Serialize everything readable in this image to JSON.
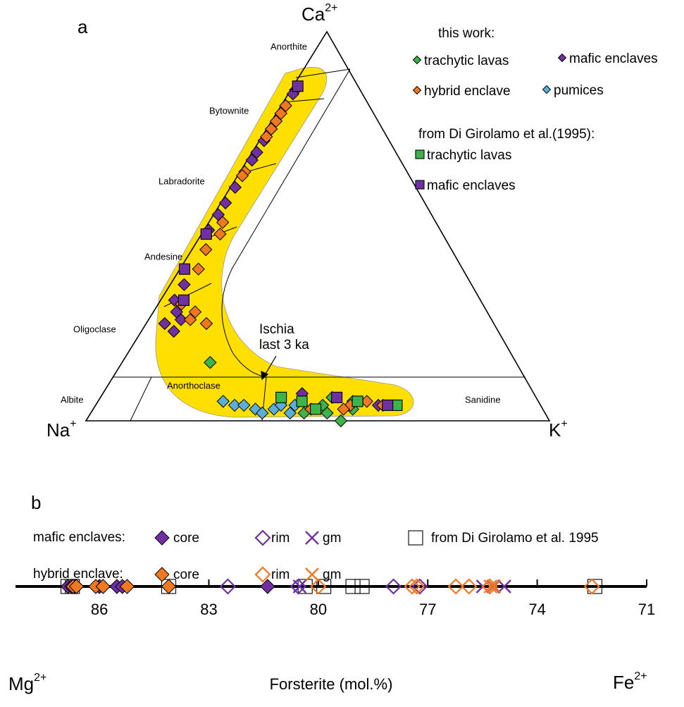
{
  "chart_data": [
    {
      "type": "ternary",
      "panel_label": "a",
      "vertex_labels": {
        "top": {
          "text": "Ca",
          "sup": "2+"
        },
        "left": {
          "text": "Na",
          "sup": "+"
        },
        "right": {
          "text": "K",
          "sup": "+"
        }
      },
      "field_labels": [
        "Anorthite",
        "Bytownite",
        "Labradorite",
        "Andesine",
        "Oligoclase",
        "Albite",
        "Anorthoclase",
        "Sanidine"
      ],
      "annotation": [
        "Ischia",
        "last 3 ka"
      ],
      "field_color": "#ffdf00",
      "legend_groups": [
        "this work:",
        "from Di Girolamo et al.(1995):"
      ],
      "series": [
        {
          "name": "trachytic lavas",
          "group": 0,
          "marker": "diamond",
          "color": "#3cb44b",
          "values": [
            [
              15,
              66,
              19
            ],
            [
              6,
              44,
              50
            ],
            [
              5,
              40,
              55
            ],
            [
              2,
              47,
              51
            ],
            [
              2,
              52,
              46
            ],
            [
              0,
              45,
              55
            ],
            [
              4,
              47,
              49
            ],
            [
              3,
              41,
              56
            ]
          ]
        },
        {
          "name": "mafic enclaves",
          "group": 0,
          "marker": "diamond",
          "color": "#7030a0",
          "values": [
            [
              85,
              14,
              1
            ],
            [
              84,
              15,
              1
            ],
            [
              81,
              18,
              1
            ],
            [
              79,
              20,
              1
            ],
            [
              75,
              24,
              1
            ],
            [
              72,
              27,
              1
            ],
            [
              69,
              30,
              1
            ],
            [
              67,
              32,
              1
            ],
            [
              60,
              39,
              1
            ],
            [
              56,
              43,
              1
            ],
            [
              53,
              46,
              1
            ],
            [
              49,
              50,
              1
            ],
            [
              35,
              62,
              3
            ],
            [
              31,
              66,
              3
            ],
            [
              28,
              67,
              5
            ],
            [
              25,
              71,
              4
            ],
            [
              23,
              70,
              7
            ],
            [
              26,
              67,
              7
            ],
            [
              7,
              50,
              43
            ],
            [
              4,
              35,
              61
            ]
          ]
        },
        {
          "name": "hybrid enclave",
          "group": 0,
          "marker": "diamond",
          "color": "#f07820",
          "values": [
            [
              81,
              18,
              1
            ],
            [
              79,
              20,
              1
            ],
            [
              77,
              22,
              1
            ],
            [
              75,
              24,
              1
            ],
            [
              73,
              26,
              1
            ],
            [
              64,
              35,
              1
            ],
            [
              63,
              36,
              1
            ],
            [
              51,
              46,
              3
            ],
            [
              48,
              48,
              4
            ],
            [
              44,
              53,
              3
            ],
            [
              39,
              57,
              4
            ],
            [
              30,
              65,
              5
            ],
            [
              28,
              63,
              9
            ],
            [
              26,
              65,
              9
            ],
            [
              25,
              62,
              13
            ],
            [
              5,
              37,
              58
            ],
            [
              4,
              34,
              62
            ],
            [
              4,
              41,
              55
            ],
            [
              3,
              43,
              54
            ],
            [
              3,
              50,
              47
            ]
          ]
        },
        {
          "name": "pumices",
          "group": 0,
          "marker": "diamond",
          "color": "#5bafd6",
          "values": [
            [
              5,
              68,
              27
            ],
            [
              4,
              66,
              30
            ],
            [
              4,
              64,
              32
            ],
            [
              3,
              62,
              35
            ],
            [
              2,
              61,
              37
            ],
            [
              3,
              58,
              39
            ],
            [
              4,
              56,
              40
            ],
            [
              2,
              55,
              43
            ],
            [
              4,
              53,
              43
            ]
          ]
        },
        {
          "name": "trachytic lavas",
          "group": 1,
          "marker": "square",
          "color": "#3cb44b",
          "values": [
            [
              6,
              55,
              39
            ],
            [
              5,
              51,
              44
            ],
            [
              3,
              49,
              48
            ],
            [
              5,
              39,
              56
            ],
            [
              4,
              31,
              65
            ]
          ]
        },
        {
          "name": "mafic enclaves",
          "group": 1,
          "marker": "square",
          "color": "#7030a0",
          "values": [
            [
              86,
              13,
              1
            ],
            [
              48,
              51,
              1
            ],
            [
              39,
              60,
              1
            ],
            [
              31,
              64,
              5
            ],
            [
              6,
              43,
              51
            ],
            [
              4,
              33,
              63
            ]
          ]
        }
      ]
    },
    {
      "type": "strip",
      "panel_label": "b",
      "xlabel": "Forsterite (mol.%)",
      "end_labels": {
        "left": {
          "text": "Mg",
          "sup": "2+"
        },
        "right": {
          "text": "Fe",
          "sup": "2+"
        }
      },
      "xlim": [
        88.3,
        71
      ],
      "xticks": [
        86,
        83,
        80,
        77,
        74,
        71
      ],
      "groups": [
        {
          "label": "mafic enclaves:",
          "color": "#7030a0",
          "series": [
            {
              "name": "core",
              "marker": "diamond-filled",
              "values": [
                86.86,
                86.76,
                86.67,
                86.0,
                85.52,
                85.37,
                81.39
              ]
            },
            {
              "name": "rim",
              "marker": "diamond-open",
              "values": [
                82.48,
                80.55,
                77.94,
                77.22
              ]
            },
            {
              "name": "gm",
              "marker": "cross",
              "values": [
                80.51,
                75.49,
                75.2,
                74.9
              ]
            }
          ]
        },
        {
          "label": "hybrid enclave:",
          "color": "#f07820",
          "series": [
            {
              "name": "core",
              "marker": "diamond-filled",
              "values": [
                86.72,
                86.63,
                86.1,
                85.9,
                85.24,
                84.1
              ]
            },
            {
              "name": "rim",
              "marker": "diamond-open",
              "values": [
                80.0,
                77.43,
                77.3,
                76.23,
                75.87,
                75.3,
                72.5
              ]
            },
            {
              "name": "gm",
              "marker": "cross",
              "values": [
                75.28,
                75.18
              ]
            }
          ]
        }
      ],
      "reference": {
        "name": "from Di Girolamo et al. 1995",
        "marker": "square-open",
        "color": "#000000",
        "values": [
          86.86,
          86.74,
          84.1,
          80.36,
          79.85,
          79.05,
          78.8,
          72.42
        ]
      }
    }
  ]
}
